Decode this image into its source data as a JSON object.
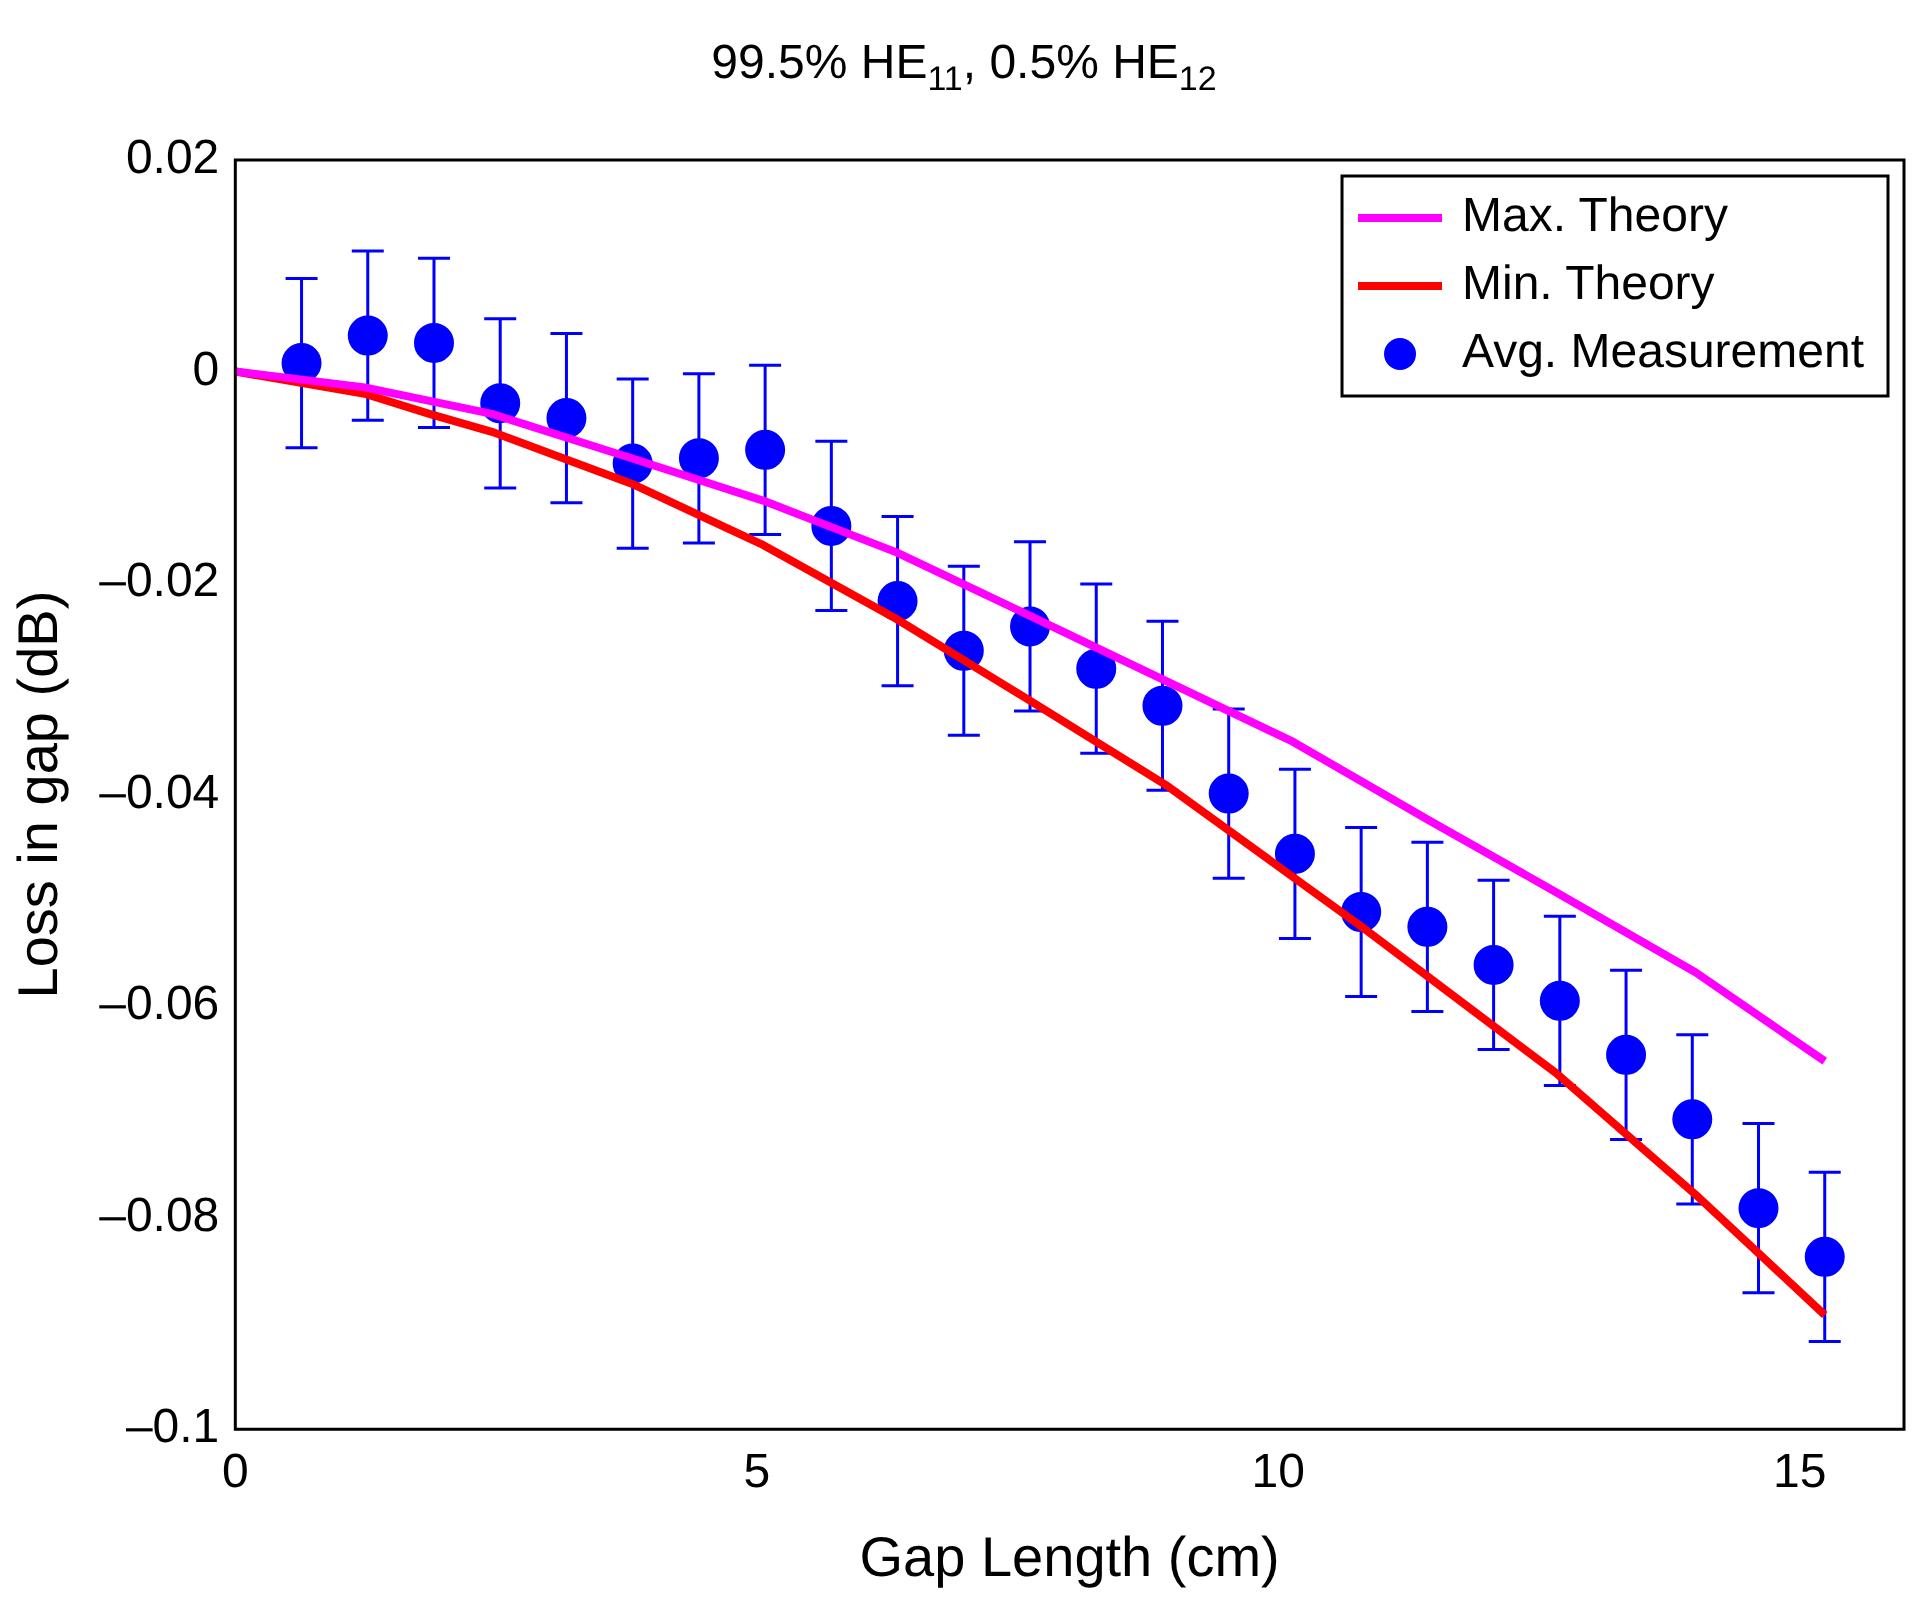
{
  "chart_data": {
    "type": "line",
    "title": "99.5% HE$_{11}$, 0.5% HE$_{12}$",
    "xlabel": "Gap Length (cm)",
    "ylabel": "Loss in gap (dB)",
    "xlim": [
      0,
      16
    ],
    "xticks": [
      0,
      5,
      10,
      15
    ],
    "ylim": [
      -0.1,
      0.02
    ],
    "yticks": [
      {
        "value": -0.1,
        "label": "–0.1"
      },
      {
        "value": -0.08,
        "label": "–0.08"
      },
      {
        "value": -0.06,
        "label": "–0.06"
      },
      {
        "value": -0.04,
        "label": "–0.04"
      },
      {
        "value": -0.02,
        "label": "–0.02"
      },
      0,
      0.02
    ],
    "grid": false,
    "legend": "top right",
    "series": [
      {
        "name": "Max. Theory",
        "type": "line",
        "color": "#ff00ff",
        "marker": "none",
        "x": [
          0,
          1.24,
          2.46,
          3.8,
          5.06,
          6.34,
          7.6,
          10.14,
          11.44,
          12.66,
          14.0,
          15.24
        ],
        "values": [
          0,
          -0.0015,
          -0.004,
          -0.0082,
          -0.0122,
          -0.0171,
          -0.023,
          -0.035,
          -0.0424,
          -0.0492,
          -0.0568,
          -0.0652
        ]
      },
      {
        "name": "Min. Theory",
        "type": "line",
        "color": "#ff0000",
        "marker": "none",
        "x": [
          0,
          1.24,
          1.86,
          2.46,
          3.8,
          5.06,
          6.34,
          7.6,
          8.94,
          10.8,
          12.66,
          14.0,
          15.24
        ],
        "values": [
          0,
          -0.0021,
          -0.004,
          -0.0057,
          -0.0106,
          -0.0164,
          -0.0234,
          -0.031,
          -0.0392,
          -0.0525,
          -0.0663,
          -0.0778,
          -0.0892
        ]
      },
      {
        "name": "Avg. Measurement",
        "type": "scatter",
        "color": "#0000ff",
        "marker": "circle",
        "x": [
          0.635,
          1.27,
          1.905,
          2.54,
          3.175,
          3.81,
          4.445,
          5.08,
          5.715,
          6.35,
          6.985,
          7.62,
          8.255,
          8.89,
          9.525,
          10.16,
          10.795,
          11.43,
          12.065,
          12.7,
          13.335,
          13.97,
          14.605,
          15.24
        ],
        "values": [
          0.0008,
          0.0034,
          0.0027,
          -0.003,
          -0.0044,
          -0.0087,
          -0.0082,
          -0.0074,
          -0.0146,
          -0.0217,
          -0.0264,
          -0.0241,
          -0.0281,
          -0.0316,
          -0.0399,
          -0.0456,
          -0.0511,
          -0.0525,
          -0.0561,
          -0.0595,
          -0.0646,
          -0.0707,
          -0.0791,
          -0.0837
        ],
        "errors": [
          0.008,
          0.008,
          0.008,
          0.008,
          0.008,
          0.008,
          0.008,
          0.008,
          0.008,
          0.008,
          0.008,
          0.008,
          0.008,
          0.008,
          0.008,
          0.008,
          0.008,
          0.008,
          0.008,
          0.008,
          0.008,
          0.008,
          0.008,
          0.008
        ]
      }
    ]
  }
}
